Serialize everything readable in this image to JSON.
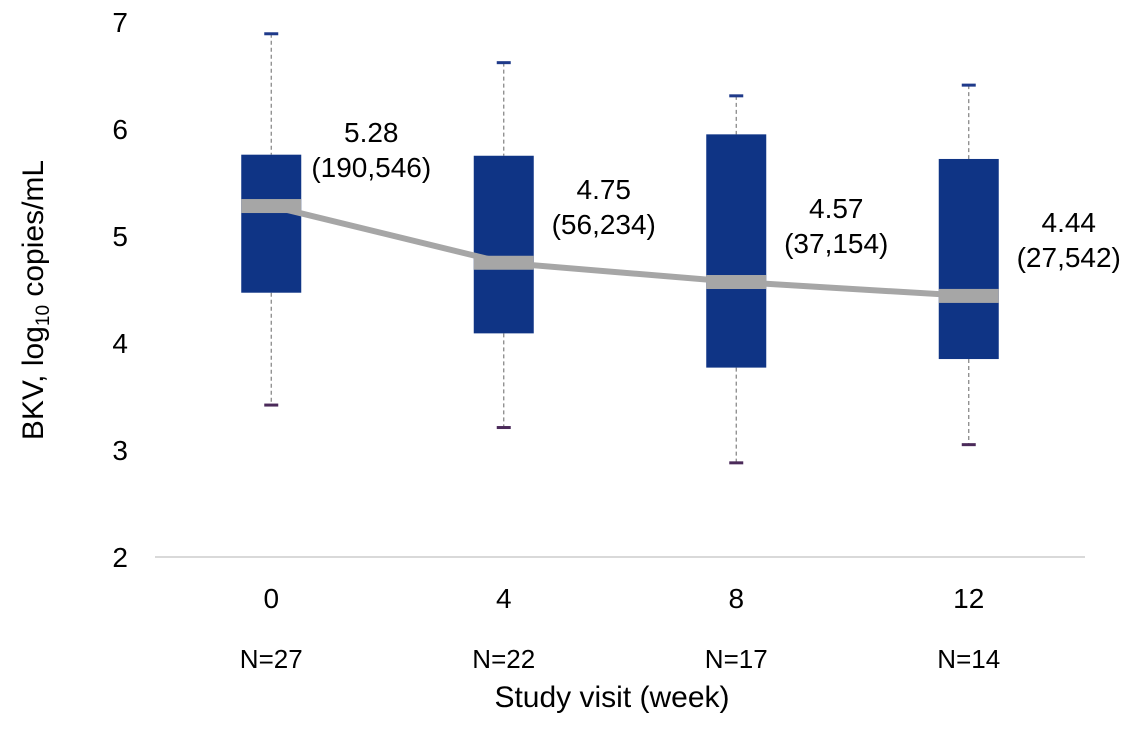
{
  "chart_data": {
    "type": "box",
    "xlabel": "Study visit (week)",
    "ylabel_parts": {
      "prefix": "BKV, log",
      "sub": "10",
      "suffix": " copies/mL"
    },
    "ylim": [
      2,
      7
    ],
    "yticks": [
      "2",
      "3",
      "4",
      "5",
      "6",
      "7"
    ],
    "grid": false,
    "categories": [
      "0",
      "4",
      "8",
      "12"
    ],
    "n_labels": [
      "N=27",
      "N=22",
      "N=17",
      "N=14"
    ],
    "boxes": [
      {
        "category": "0",
        "min": 3.42,
        "q1": 4.47,
        "median": 5.28,
        "q3": 5.76,
        "max": 6.89,
        "label_value": "5.28",
        "label_copies": "(190,546)"
      },
      {
        "category": "4",
        "min": 3.21,
        "q1": 4.09,
        "median": 4.75,
        "q3": 5.75,
        "max": 6.62,
        "label_value": "4.75",
        "label_copies": "(56,234)"
      },
      {
        "category": "8",
        "min": 2.88,
        "q1": 3.77,
        "median": 4.57,
        "q3": 5.95,
        "max": 6.31,
        "label_value": "4.57",
        "label_copies": "(37,154)"
      },
      {
        "category": "12",
        "min": 3.05,
        "q1": 3.85,
        "median": 4.44,
        "q3": 5.72,
        "max": 6.41,
        "label_value": "4.44",
        "label_copies": "(27,542)"
      }
    ],
    "colors": {
      "box": "#0f3485",
      "median_line": "#a6a6a6",
      "whisker": "#808080",
      "max_cap": "#1f3a8a",
      "min_cap": "#4b2a5a",
      "axis": "#d9d9d9"
    }
  }
}
